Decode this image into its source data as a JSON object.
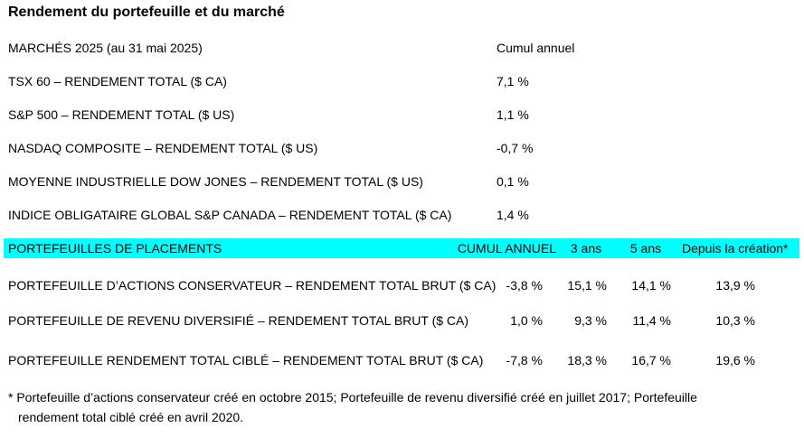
{
  "title": "Rendement du portefeuille et du marché",
  "markets": {
    "header_label": "MARCHÉS 2025 (au 31 mai 2025)",
    "header_col": "Cumul annuel",
    "rows": [
      {
        "label": "TSX 60 – RENDEMENT TOTAL ($ CA)",
        "ytd": "7,1 %"
      },
      {
        "label": "S&P 500 – RENDEMENT TOTAL ($ US)",
        "ytd": "1,1 %"
      },
      {
        "label": "NASDAQ COMPOSITE – RENDEMENT TOTAL ($ US)",
        "ytd": "-0,7 %"
      },
      {
        "label": "MOYENNE INDUSTRIELLE DOW JONES – RENDEMENT TOTAL ($ US)",
        "ytd": "0,1 %"
      },
      {
        "label": "INDICE OBLIGATAIRE GLOBAL S&P CANADA – RENDEMENT TOTAL ($ CA)",
        "ytd": "1,4 %"
      }
    ]
  },
  "portfolios": {
    "header_label": "PORTEFEUILLES DE PLACEMENTS",
    "header_ytd": "CUMUL ANNUEL",
    "header_3y": "3 ans",
    "header_5y": "5 ans",
    "header_inception": "Depuis la création*",
    "highlight_color": "#00ffff",
    "rows": [
      {
        "label": "PORTEFEUILLE D’ACTIONS CONSERVATEUR – RENDEMENT TOTAL BRUT ($ CA)",
        "ytd": "-3,8 %",
        "y3": "15,1 %",
        "y5": "14,1 %",
        "inception": "13,9 %"
      },
      {
        "label": "PORTEFEUILLE DE REVENU DIVERSIFIÉ – RENDEMENT TOTAL BRUT ($ CA)",
        "ytd": "1,0 %",
        "y3": "9,3 %",
        "y5": "11,4 %",
        "inception": "10,3 %"
      },
      {
        "label": "PORTEFEUILLE RENDEMENT TOTAL CIBLÉ – RENDEMENT TOTAL BRUT ($ CA)",
        "ytd": "-7,8 %",
        "y3": "18,3 %",
        "y5": "16,7 %",
        "inception": "19,6 %"
      }
    ]
  },
  "footnote": {
    "line1": "* Portefeuille d’actions conservateur créé en octobre 2015; Portefeuille de revenu diversifié créé en juillet 2017; Portefeuille",
    "line2": "rendement total ciblé créé en avril 2020."
  }
}
